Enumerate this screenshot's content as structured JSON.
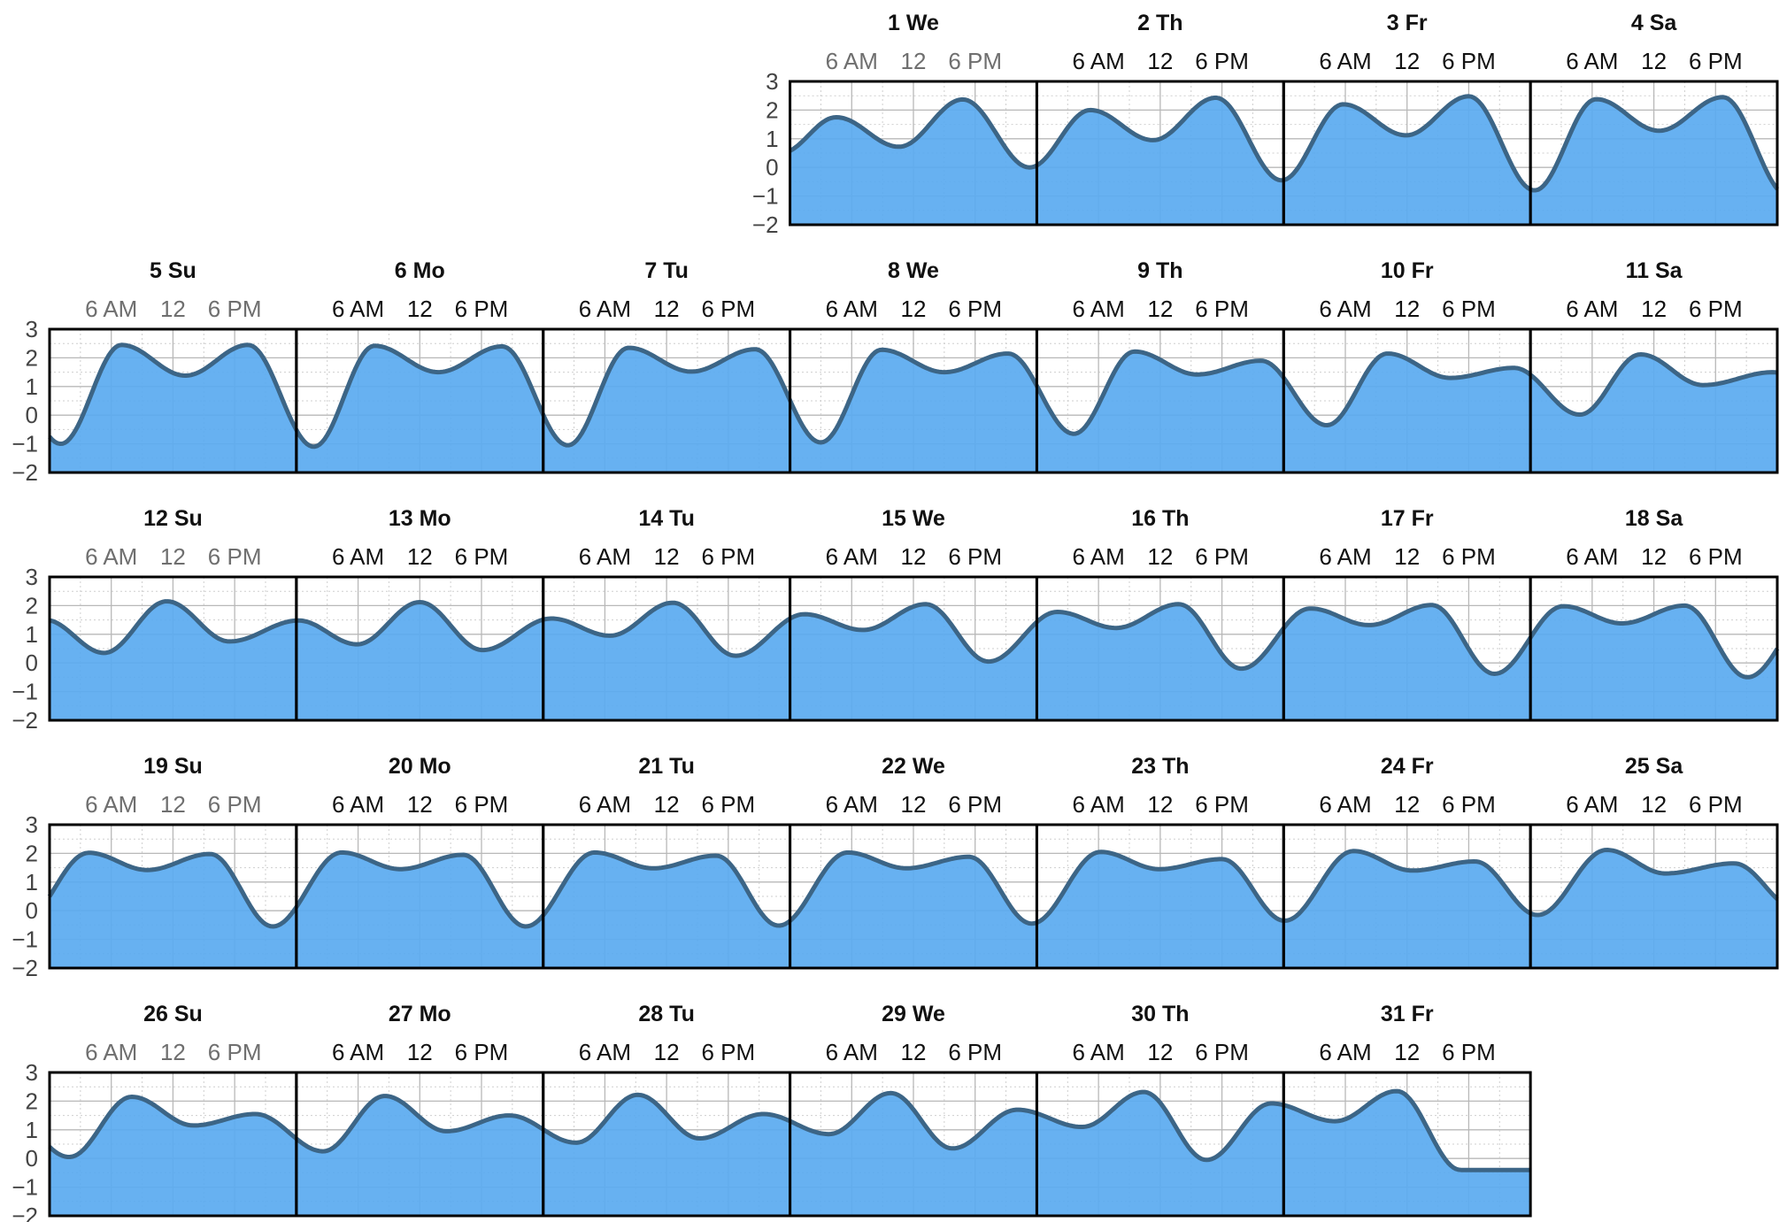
{
  "chart_data": {
    "type": "area",
    "ylim": [
      -2,
      3
    ],
    "y_ticks": [
      "3",
      "2",
      "1",
      "0",
      "−1",
      "−2"
    ],
    "hour_labels": [
      "6 AM",
      "12",
      "6 PM"
    ],
    "grid": true,
    "colors": {
      "fill": "#5aaaf0",
      "line": "#3c6586",
      "frame": "#000000",
      "grid_major": "#b8b8b8",
      "grid_minor": "#cfcfcf"
    },
    "days": [
      {
        "title": "1 We",
        "tides": [
          [
            -0.87,
            0.5
          ],
          [
            4.5,
            1.75
          ],
          [
            10.6,
            0.72
          ],
          [
            16.8,
            2.37
          ],
          [
            23.3,
            0.0
          ]
        ]
      },
      {
        "title": "2 Th",
        "tides": [
          [
            5.2,
            2.0
          ],
          [
            11.3,
            0.95
          ],
          [
            17.4,
            2.43
          ],
          [
            23.8,
            -0.45
          ]
        ]
      },
      {
        "title": "3 Fr",
        "tides": [
          [
            5.8,
            2.2
          ],
          [
            11.9,
            1.12
          ],
          [
            18.0,
            2.48
          ]
        ]
      },
      {
        "title": "4 Sa",
        "tides": [
          [
            0.4,
            -0.8
          ],
          [
            6.4,
            2.38
          ],
          [
            12.5,
            1.28
          ],
          [
            18.7,
            2.45
          ]
        ]
      },
      {
        "title": "5 Su",
        "tides": [
          [
            1.1,
            -1.0
          ],
          [
            7.0,
            2.45
          ],
          [
            13.2,
            1.38
          ],
          [
            19.3,
            2.45
          ]
        ]
      },
      {
        "title": "6 Mo",
        "tides": [
          [
            1.7,
            -1.1
          ],
          [
            7.6,
            2.42
          ],
          [
            13.8,
            1.5
          ],
          [
            20.0,
            2.4
          ]
        ]
      },
      {
        "title": "7 Tu",
        "tides": [
          [
            2.4,
            -1.05
          ],
          [
            8.3,
            2.35
          ],
          [
            14.4,
            1.52
          ],
          [
            20.6,
            2.3
          ]
        ]
      },
      {
        "title": "8 We",
        "tides": [
          [
            3.0,
            -0.95
          ],
          [
            8.9,
            2.28
          ],
          [
            15.0,
            1.5
          ],
          [
            21.2,
            2.15
          ]
        ]
      },
      {
        "title": "9 Th",
        "tides": [
          [
            3.6,
            -0.65
          ],
          [
            9.5,
            2.22
          ],
          [
            15.6,
            1.42
          ],
          [
            21.8,
            1.9
          ]
        ]
      },
      {
        "title": "10 Fr",
        "tides": [
          [
            4.2,
            -0.35
          ],
          [
            10.1,
            2.15
          ],
          [
            16.2,
            1.3
          ],
          [
            22.4,
            1.65
          ]
        ]
      },
      {
        "title": "11 Sa",
        "tides": [
          [
            4.8,
            0.02
          ],
          [
            10.7,
            2.12
          ],
          [
            16.8,
            1.05
          ],
          [
            23.6,
            1.5
          ]
        ]
      },
      {
        "title": "12 Su",
        "tides": [
          [
            5.3,
            0.35
          ],
          [
            11.4,
            2.15
          ],
          [
            17.5,
            0.75
          ]
        ]
      },
      {
        "title": "13 Mo",
        "tides": [
          [
            0.2,
            1.48
          ],
          [
            5.9,
            0.65
          ],
          [
            12.0,
            2.12
          ],
          [
            18.1,
            0.45
          ]
        ]
      },
      {
        "title": "14 Tu",
        "tides": [
          [
            0.8,
            1.55
          ],
          [
            6.5,
            0.95
          ],
          [
            12.6,
            2.1
          ],
          [
            18.7,
            0.25
          ]
        ]
      },
      {
        "title": "15 We",
        "tides": [
          [
            1.4,
            1.7
          ],
          [
            7.1,
            1.15
          ],
          [
            13.2,
            2.05
          ],
          [
            19.3,
            0.05
          ]
        ]
      },
      {
        "title": "16 Th",
        "tides": [
          [
            2.0,
            1.78
          ],
          [
            7.7,
            1.22
          ],
          [
            13.8,
            2.05
          ],
          [
            19.9,
            -0.2
          ]
        ]
      },
      {
        "title": "17 Fr",
        "tides": [
          [
            2.6,
            1.9
          ],
          [
            8.3,
            1.32
          ],
          [
            14.4,
            2.02
          ],
          [
            20.5,
            -0.38
          ]
        ]
      },
      {
        "title": "18 Sa",
        "tides": [
          [
            3.2,
            1.98
          ],
          [
            8.9,
            1.38
          ],
          [
            15.0,
            2.0
          ],
          [
            21.1,
            -0.5
          ]
        ]
      },
      {
        "title": "19 Su",
        "tides": [
          [
            3.8,
            2.02
          ],
          [
            9.5,
            1.42
          ],
          [
            15.6,
            1.98
          ],
          [
            21.7,
            -0.55
          ]
        ]
      },
      {
        "title": "20 Mo",
        "tides": [
          [
            4.4,
            2.03
          ],
          [
            10.1,
            1.45
          ],
          [
            16.2,
            1.95
          ],
          [
            22.3,
            -0.55
          ]
        ]
      },
      {
        "title": "21 Tu",
        "tides": [
          [
            5.0,
            2.03
          ],
          [
            10.7,
            1.48
          ],
          [
            16.8,
            1.92
          ],
          [
            22.9,
            -0.52
          ]
        ]
      },
      {
        "title": "22 We",
        "tides": [
          [
            5.6,
            2.03
          ],
          [
            11.3,
            1.48
          ],
          [
            17.4,
            1.88
          ],
          [
            23.5,
            -0.45
          ]
        ]
      },
      {
        "title": "23 Th",
        "tides": [
          [
            6.2,
            2.05
          ],
          [
            11.9,
            1.45
          ],
          [
            18.0,
            1.8
          ]
        ]
      },
      {
        "title": "24 Fr",
        "tides": [
          [
            0.1,
            -0.35
          ],
          [
            6.8,
            2.08
          ],
          [
            12.5,
            1.4
          ],
          [
            18.6,
            1.72
          ]
        ]
      },
      {
        "title": "25 Sa",
        "tides": [
          [
            0.7,
            -0.15
          ],
          [
            7.4,
            2.12
          ],
          [
            13.1,
            1.3
          ],
          [
            19.8,
            1.65
          ]
        ]
      },
      {
        "title": "26 Su",
        "tides": [
          [
            1.9,
            0.05
          ],
          [
            8.0,
            2.15
          ],
          [
            14.0,
            1.15
          ],
          [
            20.0,
            1.55
          ]
        ]
      },
      {
        "title": "27 Mo",
        "tides": [
          [
            2.6,
            0.25
          ],
          [
            8.6,
            2.18
          ],
          [
            14.6,
            0.95
          ],
          [
            20.7,
            1.5
          ]
        ]
      },
      {
        "title": "28 Tu",
        "tides": [
          [
            3.2,
            0.55
          ],
          [
            9.2,
            2.22
          ],
          [
            15.2,
            0.7
          ],
          [
            21.4,
            1.55
          ]
        ]
      },
      {
        "title": "29 We",
        "tides": [
          [
            3.8,
            0.85
          ],
          [
            9.8,
            2.28
          ],
          [
            15.8,
            0.35
          ],
          [
            22.1,
            1.7
          ]
        ]
      },
      {
        "title": "30 Th",
        "tides": [
          [
            4.4,
            1.1
          ],
          [
            10.4,
            2.32
          ],
          [
            16.5,
            -0.05
          ],
          [
            22.8,
            1.92
          ]
        ]
      },
      {
        "title": "31 Fr",
        "tides": [
          [
            5.0,
            1.3
          ],
          [
            11.0,
            2.35
          ],
          [
            17.2,
            -0.4
          ]
        ]
      }
    ]
  }
}
